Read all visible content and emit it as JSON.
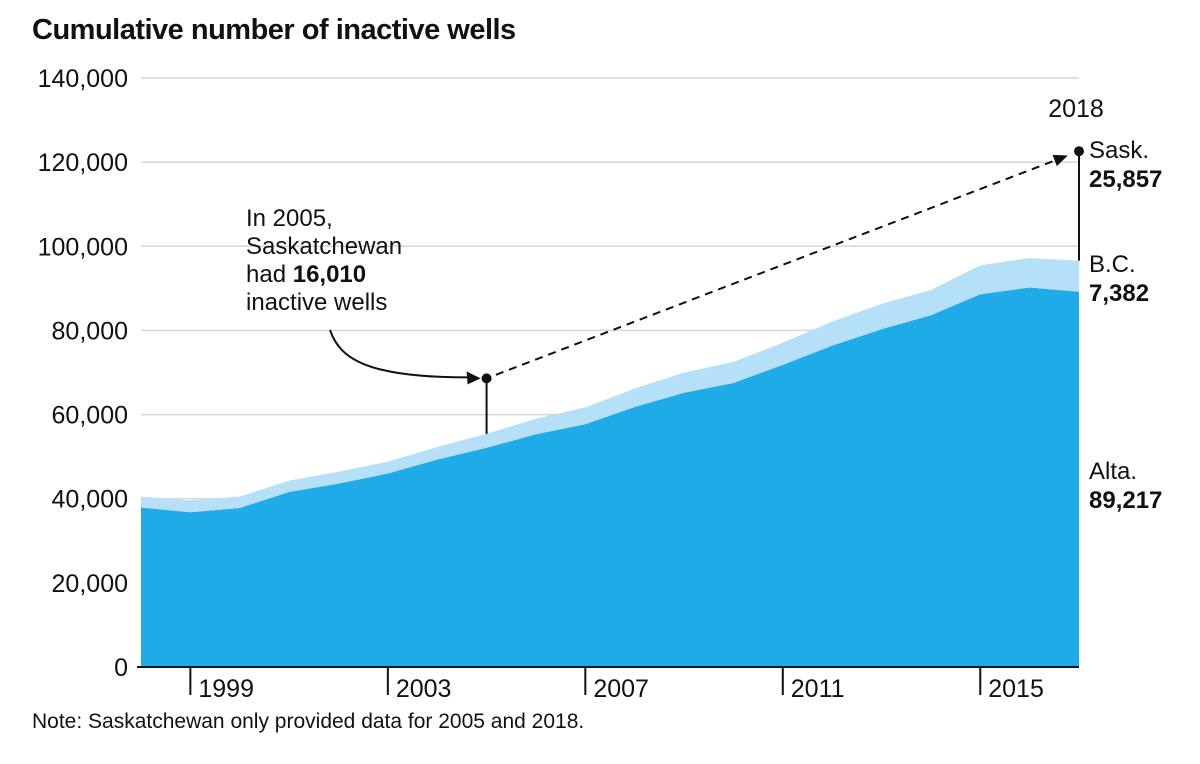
{
  "chart_data": {
    "type": "area",
    "title": "Cumulative number of inactive wells",
    "note": "Note: Saskatchewan only provided data for 2005 and 2018.",
    "xlabel": "",
    "ylabel": "",
    "stacked": true,
    "ylim": [
      0,
      140000
    ],
    "xlim": [
      1998,
      2017
    ],
    "y_ticks": [
      0,
      20000,
      40000,
      60000,
      80000,
      100000,
      120000,
      140000
    ],
    "y_tick_labels": [
      "0",
      "20,000",
      "40,000",
      "60,000",
      "80,000",
      "100,000",
      "120,000",
      "140,000"
    ],
    "x_ticks": [
      1999,
      2003,
      2007,
      2011,
      2015
    ],
    "x_tick_labels": [
      "1999",
      "2003",
      "2007",
      "2011",
      "2015"
    ],
    "x": [
      1998,
      1999,
      2000,
      2001,
      2002,
      2003,
      2004,
      2005,
      2006,
      2007,
      2008,
      2009,
      2010,
      2011,
      2012,
      2013,
      2014,
      2015,
      2016,
      2017
    ],
    "series": [
      {
        "name": "Alta.",
        "color": "#1fabe8",
        "values": [
          37900,
          36800,
          37800,
          41600,
          43600,
          46000,
          49300,
          52100,
          55300,
          57700,
          61800,
          65200,
          67500,
          71800,
          76400,
          80300,
          83600,
          88600,
          90200,
          89217
        ]
      },
      {
        "name": "B.C.",
        "color": "#b5e0f7",
        "values": [
          2600,
          2800,
          2700,
          2700,
          2800,
          2800,
          3000,
          3300,
          3700,
          4000,
          4400,
          4800,
          5000,
          5300,
          5700,
          6000,
          6000,
          6900,
          7000,
          7382
        ]
      }
    ],
    "end_labels": [
      {
        "name": "Sask.",
        "value": "25,857",
        "year": "2018"
      },
      {
        "name": "B.C.",
        "value": "7,382"
      },
      {
        "name": "Alta.",
        "value": "89,217"
      }
    ],
    "annotation": {
      "lines": [
        "In 2005,",
        "Saskatchewan",
        "had ",
        "inactive wells"
      ],
      "bold_value": "16,010",
      "from_year": 2005,
      "from_total": 68600,
      "to_total": 122600
    },
    "grid": true,
    "legend": "direct labels at right"
  }
}
